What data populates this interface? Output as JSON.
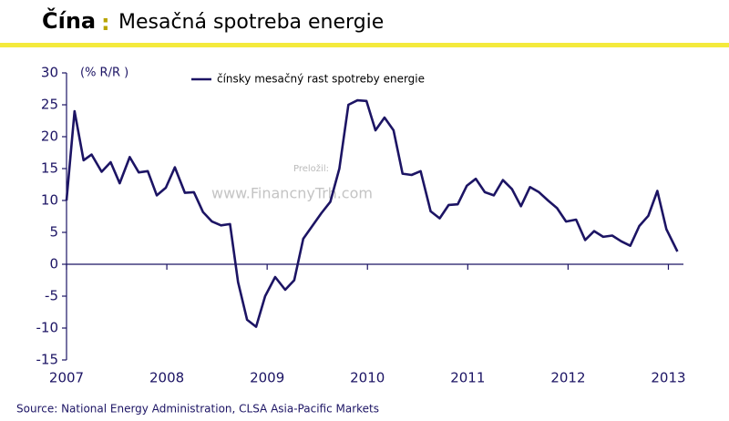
{
  "chart_data": {
    "type": "line",
    "title": "Čína",
    "title_separator": ":",
    "subtitle": "Mesačná spotreba energie",
    "y_unit": "(% R/R )",
    "watermark_label": "Preložil:",
    "watermark": "www.FinancnyTrh.com",
    "source": "Source: National Energy Administration, CLSA Asia-Pacific Markets",
    "legend": "top",
    "grid": false,
    "xlim": [
      2007,
      2013.15
    ],
    "xticks": [
      2007,
      2008,
      2009,
      2010,
      2011,
      2012,
      2013
    ],
    "ylim": [
      -15,
      30
    ],
    "yticks": [
      -15,
      -10,
      -5,
      0,
      5,
      10,
      15,
      20,
      25,
      30
    ],
    "x": [
      2007.0,
      2007.08,
      2007.17,
      2007.25,
      2007.35,
      2007.44,
      2007.53,
      2007.63,
      2007.72,
      2007.81,
      2007.9,
      2007.99,
      2008.08,
      2008.18,
      2008.27,
      2008.36,
      2008.45,
      2008.54,
      2008.63,
      2008.71,
      2008.8,
      2008.89,
      2008.98,
      2009.08,
      2009.18,
      2009.27,
      2009.36,
      2009.45,
      2009.54,
      2009.63,
      2009.72,
      2009.81,
      2009.9,
      2009.99,
      2010.08,
      2010.17,
      2010.26,
      2010.35,
      2010.44,
      2010.53,
      2010.63,
      2010.72,
      2010.81,
      2010.9,
      2010.99,
      2011.08,
      2011.17,
      2011.26,
      2011.35,
      2011.44,
      2011.53,
      2011.62,
      2011.71,
      2011.8,
      2011.89,
      2011.98,
      2012.08,
      2012.17,
      2012.26,
      2012.35,
      2012.44,
      2012.53,
      2012.62,
      2012.71,
      2012.8,
      2012.89,
      2012.98,
      2013.09
    ],
    "series": [
      {
        "name": "čínsky mesačný rast spotreby energie",
        "color": "#1c1464",
        "values": [
          10,
          24,
          16.3,
          17.2,
          14.5,
          16,
          12.7,
          16.8,
          14.4,
          14.6,
          10.8,
          12,
          15.2,
          11.2,
          11.3,
          8.2,
          6.7,
          6.1,
          6.3,
          -2.8,
          -8.7,
          -9.8,
          -5,
          -2,
          -4,
          -2.5,
          4,
          6,
          8,
          9.8,
          15,
          25,
          25.7,
          25.6,
          21,
          23,
          21,
          14.2,
          14,
          14.6,
          8.3,
          7.2,
          9.3,
          9.4,
          12.3,
          13.4,
          11.3,
          10.8,
          13.2,
          11.8,
          9.1,
          12.1,
          11.3,
          10,
          8.8,
          6.7,
          7,
          3.8,
          5.2,
          4.3,
          4.5,
          3.6,
          2.9,
          6,
          7.6,
          11.5,
          5.5,
          2
        ]
      }
    ]
  }
}
